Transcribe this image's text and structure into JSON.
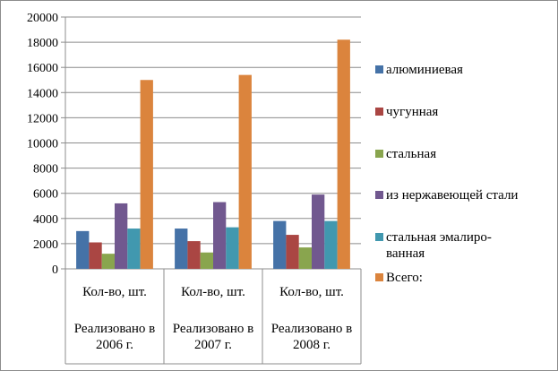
{
  "chart_data": {
    "type": "bar",
    "title": "",
    "xlabel": "",
    "ylabel": "",
    "ylim": [
      0,
      20000
    ],
    "yticks": [
      "0",
      "2000",
      "4000",
      "6000",
      "8000",
      "10000",
      "12000",
      "14000",
      "16000",
      "18000",
      "20000"
    ],
    "grid": true,
    "legend_position": "right",
    "categories": [
      {
        "line1": "Кол-во, шт.",
        "line2": "Реализовано в 2006 г."
      },
      {
        "line1": "Кол-во, шт.",
        "line2": "Реализовано в 2007 г."
      },
      {
        "line1": "Кол-во, шт.",
        "line2": "Реализовано в 2008 г."
      }
    ],
    "series": [
      {
        "name": "алюминиевая",
        "color": "#4572a7",
        "values": [
          3000,
          3200,
          3800
        ]
      },
      {
        "name": "чугунная",
        "color": "#aa4643",
        "values": [
          2100,
          2200,
          2700
        ]
      },
      {
        "name": "стальная",
        "color": "#89a54e",
        "values": [
          1200,
          1300,
          1700
        ]
      },
      {
        "name": "из нержавеющей стали",
        "color": "#71588f",
        "values": [
          5200,
          5300,
          5900
        ]
      },
      {
        "name": "стальная эмалиро-ванная",
        "color": "#4198af",
        "values": [
          3200,
          3300,
          3800
        ]
      },
      {
        "name": "Всего:",
        "color": "#db843d",
        "values": [
          15000,
          15400,
          18200
        ]
      }
    ]
  }
}
